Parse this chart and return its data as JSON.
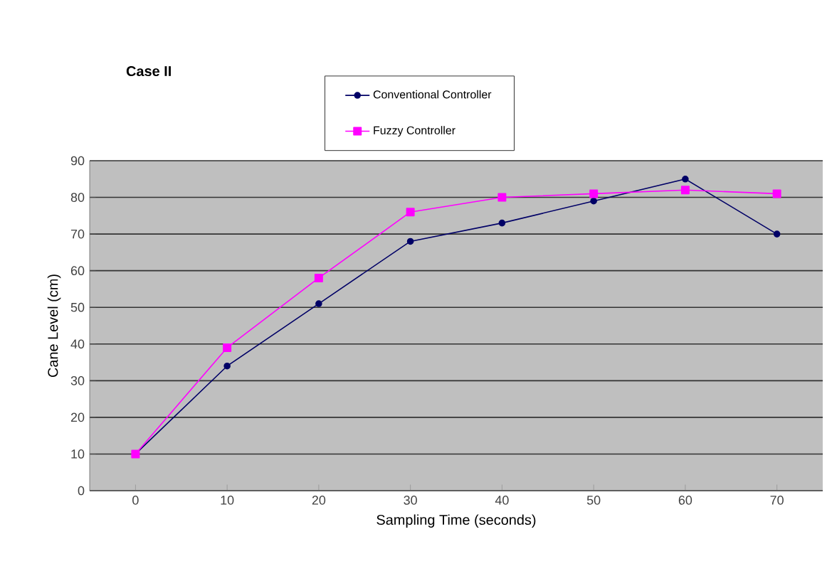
{
  "chart_data": {
    "type": "line",
    "title": "Case II",
    "xlabel": "Sampling Time (seconds)",
    "ylabel": "Cane Level (cm)",
    "categories": [
      "0",
      "10",
      "20",
      "30",
      "40",
      "50",
      "60",
      "70"
    ],
    "series": [
      {
        "name": "Conventional Controller",
        "color": "#000066",
        "marker": "circle",
        "values": [
          10,
          34,
          51,
          68,
          73,
          79,
          85,
          70
        ]
      },
      {
        "name": "Fuzzy Controller",
        "color": "#ff00ff",
        "marker": "square",
        "values": [
          10,
          39,
          58,
          76,
          80,
          81,
          82,
          81
        ]
      }
    ],
    "ylim": [
      0,
      90
    ],
    "yticks": [
      0,
      10,
      20,
      30,
      40,
      50,
      60,
      70,
      80,
      90
    ],
    "grid": "y",
    "legend": "top",
    "line_style": "solid"
  }
}
